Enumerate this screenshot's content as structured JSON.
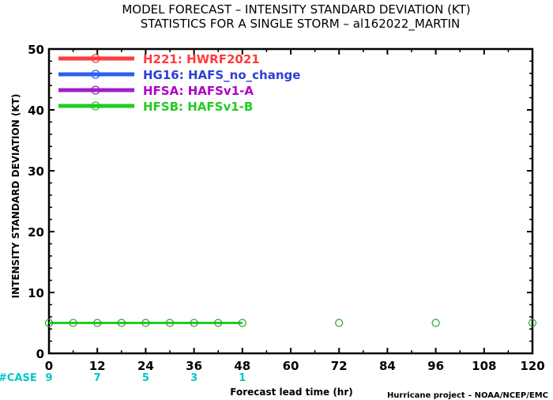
{
  "chart_data": {
    "type": "line",
    "title": "MODEL FORECAST – INTENSITY STANDARD DEVIATION (KT)",
    "subtitle": "STATISTICS FOR A SINGLE STORM – al162022_MARTIN",
    "xlabel": "Forecast lead time (hr)",
    "ylabel": "INTENSITY STANDARD DEVIATION (KT)",
    "xlim": [
      0,
      120
    ],
    "ylim": [
      0,
      50
    ],
    "xticks": [
      "0",
      "12",
      "24",
      "36",
      "48",
      "60",
      "72",
      "84",
      "96",
      "108",
      "120"
    ],
    "xtick_values": [
      0,
      12,
      24,
      36,
      48,
      60,
      72,
      84,
      96,
      108,
      120
    ],
    "yticks": [
      "0",
      "10",
      "20",
      "30",
      "40",
      "50"
    ],
    "ytick_values": [
      0,
      10,
      20,
      30,
      40,
      50
    ],
    "grid": false,
    "legend_position": "top-left",
    "series": [
      {
        "name": "H221: HWRF2021",
        "label_color": "#ff3b3b",
        "line_color": "#ff3b3b",
        "x": [],
        "y": []
      },
      {
        "name": "HG16: HAFS_no_change",
        "label_color": "#2b3fd8",
        "line_color": "#2b5ff0",
        "x": [],
        "y": []
      },
      {
        "name": "HFSA: HAFSv1-A",
        "label_color": "#b000c8",
        "line_color": "#a020c8",
        "x": [],
        "y": []
      },
      {
        "name": "HFSB: HAFSv1-B",
        "label_color": "#22cc22",
        "line_color": "#22cc22",
        "x": [
          0,
          6,
          12,
          18,
          24,
          30,
          36,
          42,
          48
        ],
        "y": [
          5,
          5,
          5,
          5,
          5,
          5,
          5,
          5,
          5
        ]
      }
    ],
    "markers_only": {
      "x": [
        72,
        96,
        120
      ],
      "y": [
        5,
        5,
        5
      ],
      "color": "#22aa22"
    },
    "cases": {
      "label": "#CASE",
      "color": "#00c8c8",
      "x": [
        0,
        12,
        24,
        36,
        48
      ],
      "values": [
        "9",
        "7",
        "5",
        "3",
        "1"
      ]
    }
  },
  "credit": "Hurricane project – NOAA/NCEP/EMC"
}
